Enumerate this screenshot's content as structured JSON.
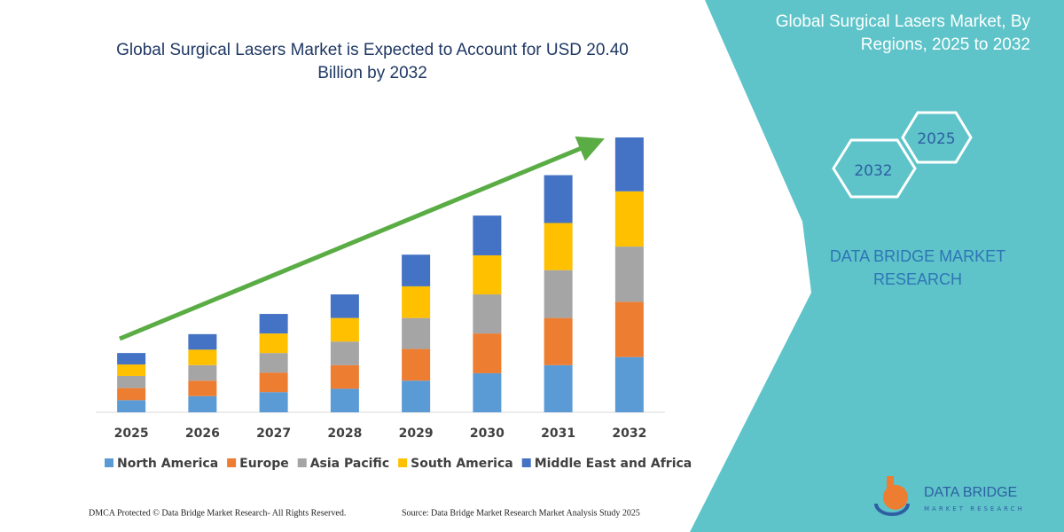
{
  "chart_data": {
    "type": "stacked_bar",
    "title": "Global Surgical Lasers Market is Expected to Account for USD 20.40 Billion by 2032",
    "categories": [
      "2025",
      "2026",
      "2027",
      "2028",
      "2029",
      "2030",
      "2031",
      "2032"
    ],
    "series": [
      {
        "name": "North America",
        "color": "#5b9bd5",
        "values": [
          0.9,
          1.2,
          1.5,
          1.75,
          2.35,
          2.9,
          3.5,
          4.1
        ]
      },
      {
        "name": "Europe",
        "color": "#ed7d31",
        "values": [
          0.9,
          1.15,
          1.45,
          1.75,
          2.35,
          2.95,
          3.5,
          4.1
        ]
      },
      {
        "name": "Asia Pacific",
        "color": "#a5a5a5",
        "values": [
          0.9,
          1.15,
          1.45,
          1.75,
          2.3,
          2.9,
          3.55,
          4.1
        ]
      },
      {
        "name": "South America",
        "color": "#ffc000",
        "values": [
          0.85,
          1.15,
          1.45,
          1.75,
          2.35,
          2.9,
          3.5,
          4.1
        ]
      },
      {
        "name": "Middle East and Africa",
        "color": "#4472c4",
        "values": [
          0.85,
          1.15,
          1.45,
          1.75,
          2.35,
          2.95,
          3.55,
          4.0
        ]
      }
    ]
  },
  "panel": {
    "title": "Global Surgical Lasers Market, By Regions, 2025 to 2032",
    "hexagons": [
      "2025",
      "2032"
    ],
    "brand": "DATA BRIDGE MARKET RESEARCH"
  },
  "footer": {
    "copyright": "DMCA Protected © Data Bridge Market Research- All Rights Reserved.",
    "source": "Source: Data Bridge Market Research  Market Analysis Study 2025"
  },
  "logo": {
    "name": "DATA BRIDGE",
    "tagline": "MARKET RESEARCH"
  }
}
